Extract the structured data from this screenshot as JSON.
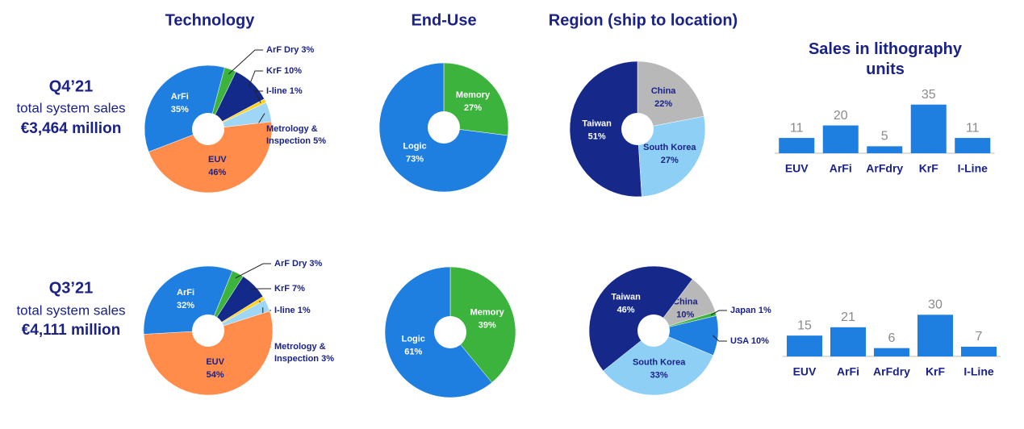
{
  "headers": [
    "Technology",
    "End-Use",
    "Region (ship to location)"
  ],
  "periods": [
    {
      "quarter": "Q4’21",
      "caption": "total system sales",
      "amount": "€3,464 million"
    },
    {
      "quarter": "Q3’21",
      "caption": "total system sales",
      "amount": "€4,111 million"
    }
  ],
  "chart_data": [
    {
      "type": "pie",
      "categories": [
        "ArF Dry",
        "KrF",
        "I-line",
        "Metrology & Inspection",
        "EUV",
        "ArFi"
      ],
      "values": [
        3,
        10,
        1,
        5,
        46,
        35
      ],
      "value_labels": [
        "3%",
        "10%",
        "1%",
        "5%",
        "46%",
        "35%"
      ],
      "colors": [
        "#3cb33c",
        "#142a8a",
        "#ffd21f",
        "#9fd6f5",
        "#ff8c4a",
        "#1e7fe0"
      ]
    },
    {
      "type": "pie",
      "categories": [
        "Memory",
        "Logic"
      ],
      "values": [
        27,
        73
      ],
      "value_labels": [
        "27%",
        "73%"
      ],
      "colors": [
        "#3cb33c",
        "#1e7fe0"
      ]
    },
    {
      "type": "pie",
      "categories": [
        "China",
        "South Korea",
        "Taiwan"
      ],
      "values": [
        22,
        27,
        51
      ],
      "value_labels": [
        "22%",
        "27%",
        "51%"
      ],
      "colors": [
        "#b8b8b8",
        "#8ecff5",
        "#16298a"
      ]
    },
    {
      "type": "bar",
      "title": "Sales in lithography units",
      "categories": [
        "EUV",
        "ArFi",
        "ArFdry",
        "KrF",
        "I-Line"
      ],
      "values": [
        11,
        20,
        5,
        35,
        11
      ],
      "color": "#1e7fe0",
      "ylim": [
        0,
        36
      ]
    },
    {
      "type": "pie",
      "categories": [
        "ArF Dry",
        "KrF",
        "I-line",
        "Metrology & Inspection",
        "EUV",
        "ArFi"
      ],
      "values": [
        3,
        7,
        1,
        3,
        54,
        32
      ],
      "value_labels": [
        "3%",
        "7%",
        "1%",
        "3%",
        "54%",
        "32%"
      ],
      "colors": [
        "#3cb33c",
        "#142a8a",
        "#ffd21f",
        "#9fd6f5",
        "#ff8c4a",
        "#1e7fe0"
      ]
    },
    {
      "type": "pie",
      "categories": [
        "Memory",
        "Logic"
      ],
      "values": [
        39,
        61
      ],
      "value_labels": [
        "39%",
        "61%"
      ],
      "colors": [
        "#3cb33c",
        "#1e7fe0"
      ]
    },
    {
      "type": "pie",
      "categories": [
        "China",
        "Japan",
        "USA",
        "South Korea",
        "Taiwan"
      ],
      "values": [
        10,
        1,
        10,
        33,
        46
      ],
      "value_labels": [
        "10%",
        "1%",
        "10%",
        "33%",
        "46%"
      ],
      "colors": [
        "#b8b8b8",
        "#3cb33c",
        "#1e7fe0",
        "#8ecff5",
        "#16298a"
      ]
    },
    {
      "type": "bar",
      "categories": [
        "EUV",
        "ArFi",
        "ArFdry",
        "KrF",
        "I-Line"
      ],
      "values": [
        15,
        21,
        6,
        30,
        7
      ],
      "color": "#1e7fe0",
      "ylim": [
        0,
        36
      ]
    }
  ]
}
